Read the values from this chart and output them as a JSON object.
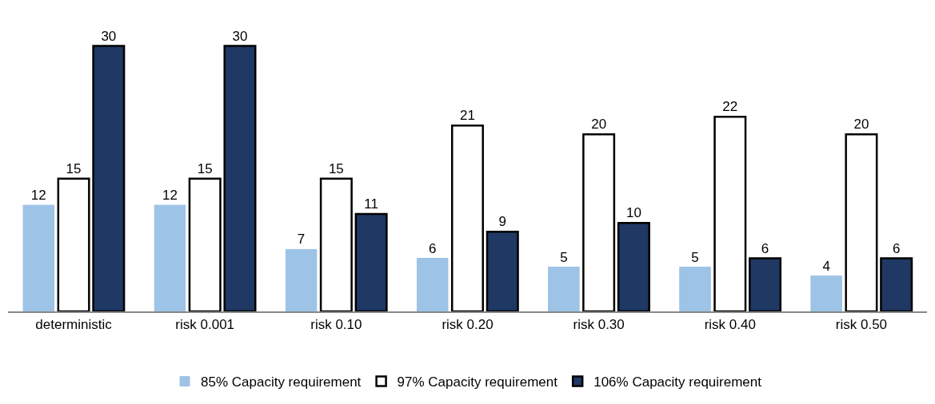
{
  "chart_data": {
    "type": "bar",
    "categories": [
      "deterministic",
      "risk 0.001",
      "risk 0.10",
      "risk 0.20",
      "risk 0.30",
      "risk 0.40",
      "risk 0.50"
    ],
    "series": [
      {
        "name": "85% Capacity requirement",
        "color": "#9dc3e6",
        "values": [
          12,
          12,
          7,
          6,
          5,
          5,
          4
        ]
      },
      {
        "name": "97% Capacity requirement",
        "color": "#ffffff",
        "values": [
          15,
          15,
          15,
          21,
          20,
          22,
          20
        ]
      },
      {
        "name": "106% Capacity requirement",
        "color": "#1f3864",
        "values": [
          30,
          30,
          11,
          9,
          10,
          6,
          6
        ]
      }
    ],
    "data_labels": true,
    "grid": false,
    "legend": "bottom"
  }
}
